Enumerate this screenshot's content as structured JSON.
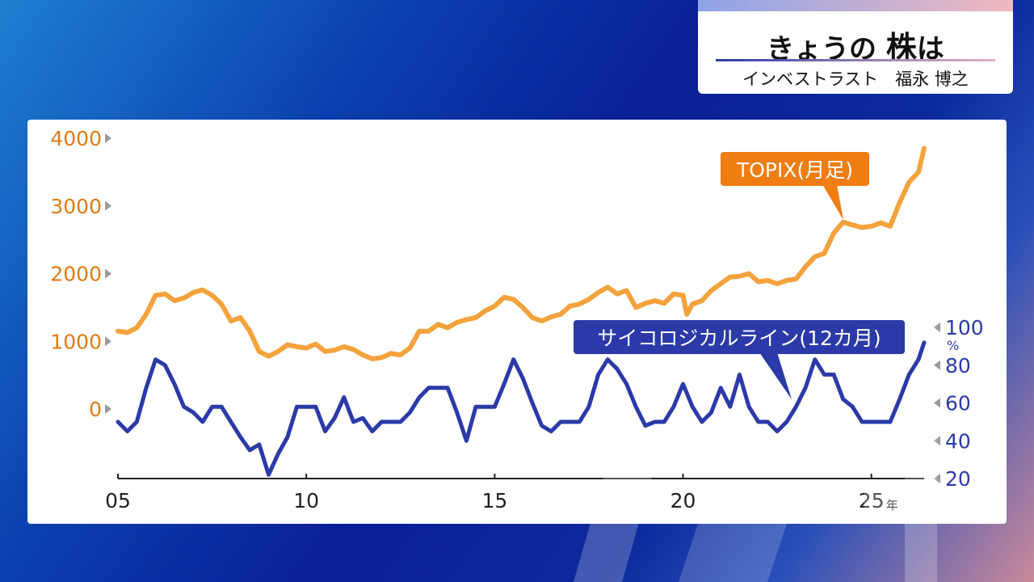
{
  "header": {
    "title_prefix": "きょうの",
    "title_emph": "株",
    "title_suffix": "は",
    "byline": "インベストラスト　福永 博之"
  },
  "colors": {
    "topix": "#f4a23c",
    "topix_label_bg": "#ef7d12",
    "psych": "#2b3aa8",
    "psych_label_bg": "#2b3aa8",
    "left_axis_text": "#e07b14",
    "right_axis_text": "#2b3aa8"
  },
  "chart_data": {
    "type": "line",
    "x_axis": {
      "range": [
        2005,
        2026.4
      ],
      "ticks": [
        2005,
        2010,
        2015,
        2020,
        2025
      ],
      "tick_labels": [
        "05",
        "10",
        "15",
        "20",
        "25"
      ],
      "unit_label": "年"
    },
    "left_axis": {
      "range": [
        0,
        4000
      ],
      "ticks": [
        0,
        1000,
        2000,
        3000,
        4000
      ],
      "tick_labels": [
        "0",
        "1000",
        "2000",
        "3000",
        "4000"
      ]
    },
    "right_axis": {
      "range": [
        20,
        100
      ],
      "ticks": [
        20,
        40,
        60,
        80,
        100
      ],
      "tick_labels": [
        "20",
        "40",
        "60",
        "80",
        "100"
      ],
      "unit_label": "%"
    },
    "grid": false,
    "series": [
      {
        "name": "TOPIX(月足)",
        "axis": "left",
        "x": [
          2005.0,
          2005.25,
          2005.5,
          2005.75,
          2006.0,
          2006.25,
          2006.5,
          2006.75,
          2007.0,
          2007.25,
          2007.5,
          2007.75,
          2008.0,
          2008.25,
          2008.5,
          2008.75,
          2009.0,
          2009.25,
          2009.5,
          2009.75,
          2010.0,
          2010.25,
          2010.5,
          2010.75,
          2011.0,
          2011.25,
          2011.5,
          2011.75,
          2012.0,
          2012.25,
          2012.5,
          2012.75,
          2013.0,
          2013.25,
          2013.5,
          2013.75,
          2014.0,
          2014.25,
          2014.5,
          2014.75,
          2015.0,
          2015.25,
          2015.5,
          2015.75,
          2016.0,
          2016.25,
          2016.5,
          2016.75,
          2017.0,
          2017.25,
          2017.5,
          2017.75,
          2018.0,
          2018.25,
          2018.5,
          2018.75,
          2019.0,
          2019.25,
          2019.5,
          2019.75,
          2020.0,
          2020.1,
          2020.25,
          2020.5,
          2020.75,
          2021.0,
          2021.25,
          2021.5,
          2021.75,
          2022.0,
          2022.25,
          2022.5,
          2022.75,
          2023.0,
          2023.25,
          2023.5,
          2023.75,
          2024.0,
          2024.25,
          2024.5,
          2024.75,
          2025.0,
          2025.25,
          2025.5,
          2025.75,
          2026.0,
          2026.25,
          2026.4
        ],
        "values": [
          1150,
          1130,
          1200,
          1400,
          1680,
          1700,
          1600,
          1640,
          1720,
          1760,
          1680,
          1550,
          1300,
          1350,
          1150,
          850,
          780,
          850,
          950,
          920,
          900,
          960,
          850,
          870,
          920,
          880,
          800,
          740,
          760,
          820,
          800,
          900,
          1150,
          1150,
          1250,
          1200,
          1280,
          1320,
          1350,
          1450,
          1520,
          1650,
          1620,
          1500,
          1350,
          1300,
          1360,
          1400,
          1520,
          1550,
          1620,
          1720,
          1800,
          1700,
          1750,
          1500,
          1560,
          1600,
          1560,
          1700,
          1680,
          1400,
          1550,
          1600,
          1750,
          1850,
          1950,
          1960,
          2000,
          1880,
          1900,
          1850,
          1900,
          1920,
          2100,
          2250,
          2300,
          2600,
          2760,
          2720,
          2680,
          2700,
          2750,
          2700,
          3050,
          3350,
          3500,
          3850
        ]
      },
      {
        "name": "サイコロジカルライン(12カ月)",
        "axis": "right",
        "x": [
          2005.0,
          2005.25,
          2005.5,
          2005.75,
          2006.0,
          2006.25,
          2006.5,
          2006.75,
          2007.0,
          2007.25,
          2007.5,
          2007.75,
          2008.0,
          2008.25,
          2008.5,
          2008.75,
          2009.0,
          2009.25,
          2009.5,
          2009.75,
          2010.0,
          2010.25,
          2010.5,
          2010.75,
          2011.0,
          2011.25,
          2011.5,
          2011.75,
          2012.0,
          2012.25,
          2012.5,
          2012.75,
          2013.0,
          2013.25,
          2013.5,
          2013.75,
          2014.0,
          2014.25,
          2014.5,
          2014.75,
          2015.0,
          2015.25,
          2015.5,
          2015.75,
          2016.0,
          2016.25,
          2016.5,
          2016.75,
          2017.0,
          2017.25,
          2017.5,
          2017.75,
          2018.0,
          2018.25,
          2018.5,
          2018.75,
          2019.0,
          2019.25,
          2019.5,
          2019.75,
          2020.0,
          2020.25,
          2020.5,
          2020.75,
          2021.0,
          2021.25,
          2021.5,
          2021.75,
          2022.0,
          2022.25,
          2022.5,
          2022.75,
          2023.0,
          2023.25,
          2023.5,
          2023.75,
          2024.0,
          2024.25,
          2024.5,
          2024.75,
          2025.0,
          2025.25,
          2025.5,
          2025.75,
          2026.0,
          2026.25,
          2026.4
        ],
        "values": [
          50,
          45,
          50,
          68,
          83,
          80,
          70,
          58,
          55,
          50,
          58,
          58,
          50,
          42,
          35,
          38,
          22,
          33,
          42,
          58,
          58,
          58,
          45,
          52,
          63,
          50,
          52,
          45,
          50,
          50,
          50,
          55,
          63,
          68,
          68,
          68,
          55,
          40,
          58,
          58,
          58,
          70,
          83,
          73,
          60,
          48,
          45,
          50,
          50,
          50,
          58,
          75,
          83,
          78,
          70,
          58,
          48,
          50,
          50,
          58,
          70,
          58,
          50,
          55,
          68,
          58,
          75,
          58,
          50,
          50,
          45,
          50,
          58,
          68,
          83,
          75,
          75,
          62,
          58,
          50,
          50,
          50,
          50,
          62,
          75,
          83,
          92
        ]
      }
    ]
  }
}
